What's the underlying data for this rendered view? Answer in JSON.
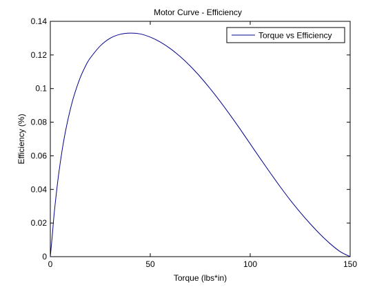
{
  "chart_data": {
    "type": "line",
    "title": "Motor Curve - Efficiency",
    "xlabel": "Torque (lbs*in)",
    "ylabel": "Efficiency (%)",
    "xlim": [
      0,
      150
    ],
    "ylim": [
      0,
      0.14
    ],
    "xticks": [
      0,
      50,
      100,
      150
    ],
    "xtick_labels": [
      "0",
      "50",
      "100",
      "150"
    ],
    "yticks": [
      0,
      0.02,
      0.04,
      0.06,
      0.08,
      0.1,
      0.12,
      0.14
    ],
    "ytick_labels": [
      "0",
      "0.02",
      "0.04",
      "0.06",
      "0.08",
      "0.1",
      "0.12",
      "0.14"
    ],
    "grid": false,
    "legend_position": "top-right",
    "series": [
      {
        "name": "Torque vs Efficiency",
        "color": "#00008b",
        "x": [
          0,
          1,
          2,
          4,
          6,
          8,
          10,
          12,
          15,
          18,
          20,
          25,
          30,
          35,
          40,
          45,
          50,
          55,
          60,
          65,
          70,
          75,
          80,
          85,
          90,
          95,
          100,
          105,
          110,
          115,
          120,
          125,
          130,
          135,
          140,
          145,
          150
        ],
        "y": [
          0,
          0.0128,
          0.0265,
          0.0475,
          0.064,
          0.077,
          0.0876,
          0.0963,
          0.1066,
          0.1143,
          0.1182,
          0.1254,
          0.13,
          0.1323,
          0.133,
          0.1325,
          0.1306,
          0.1277,
          0.1238,
          0.119,
          0.1134,
          0.107,
          0.0999,
          0.0923,
          0.0842,
          0.0758,
          0.0671,
          0.0584,
          0.0499,
          0.0416,
          0.0337,
          0.0264,
          0.0196,
          0.0133,
          0.0077,
          0.003,
          0
        ]
      }
    ]
  }
}
